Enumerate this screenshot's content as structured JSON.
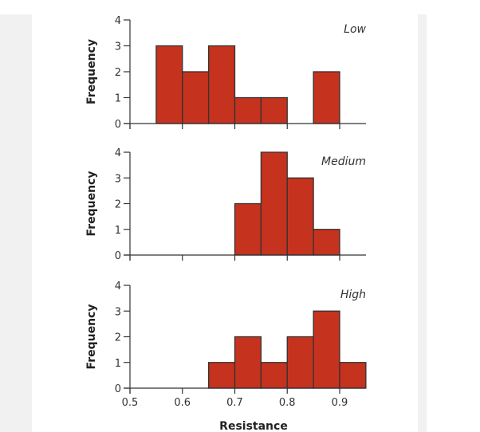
{
  "chart_data": [
    {
      "type": "bar",
      "subtype": "histogram",
      "panel_label": "Low",
      "ylabel": "Frequency",
      "xlabel": "",
      "ylim": [
        0,
        4
      ],
      "yticks": [
        "0",
        "1",
        "2",
        "3",
        "4"
      ],
      "xlim": [
        0.5,
        0.95
      ],
      "bin_width": 0.05,
      "bins": [
        {
          "start": 0.55,
          "end": 0.6,
          "value": 3
        },
        {
          "start": 0.6,
          "end": 0.65,
          "value": 2
        },
        {
          "start": 0.65,
          "end": 0.7,
          "value": 3
        },
        {
          "start": 0.7,
          "end": 0.75,
          "value": 1
        },
        {
          "start": 0.75,
          "end": 0.8,
          "value": 1
        },
        {
          "start": 0.85,
          "end": 0.9,
          "value": 2
        }
      ],
      "show_xtick_labels": false
    },
    {
      "type": "bar",
      "subtype": "histogram",
      "panel_label": "Medium",
      "ylabel": "Frequency",
      "xlabel": "",
      "ylim": [
        0,
        4
      ],
      "yticks": [
        "0",
        "1",
        "2",
        "3",
        "4"
      ],
      "xlim": [
        0.5,
        0.95
      ],
      "bin_width": 0.05,
      "bins": [
        {
          "start": 0.7,
          "end": 0.75,
          "value": 2
        },
        {
          "start": 0.75,
          "end": 0.8,
          "value": 4
        },
        {
          "start": 0.8,
          "end": 0.85,
          "value": 3
        },
        {
          "start": 0.85,
          "end": 0.9,
          "value": 1
        }
      ],
      "show_xtick_labels": false
    },
    {
      "type": "bar",
      "subtype": "histogram",
      "panel_label": "High",
      "ylabel": "Frequency",
      "xlabel": "Resistance",
      "ylim": [
        0,
        4
      ],
      "yticks": [
        "0",
        "1",
        "2",
        "3",
        "4"
      ],
      "xlim": [
        0.5,
        0.95
      ],
      "xticks": [
        "0.5",
        "0.6",
        "0.7",
        "0.8",
        "0.9"
      ],
      "bin_width": 0.05,
      "bins": [
        {
          "start": 0.65,
          "end": 0.7,
          "value": 1
        },
        {
          "start": 0.7,
          "end": 0.75,
          "value": 2
        },
        {
          "start": 0.75,
          "end": 0.8,
          "value": 1
        },
        {
          "start": 0.8,
          "end": 0.85,
          "value": 2
        },
        {
          "start": 0.85,
          "end": 0.9,
          "value": 3
        },
        {
          "start": 0.9,
          "end": 0.95,
          "value": 1
        }
      ],
      "show_xtick_labels": true
    }
  ],
  "colors": {
    "bar_fill": "#c5321e",
    "bar_stroke": "#333333",
    "axis": "#333333"
  }
}
